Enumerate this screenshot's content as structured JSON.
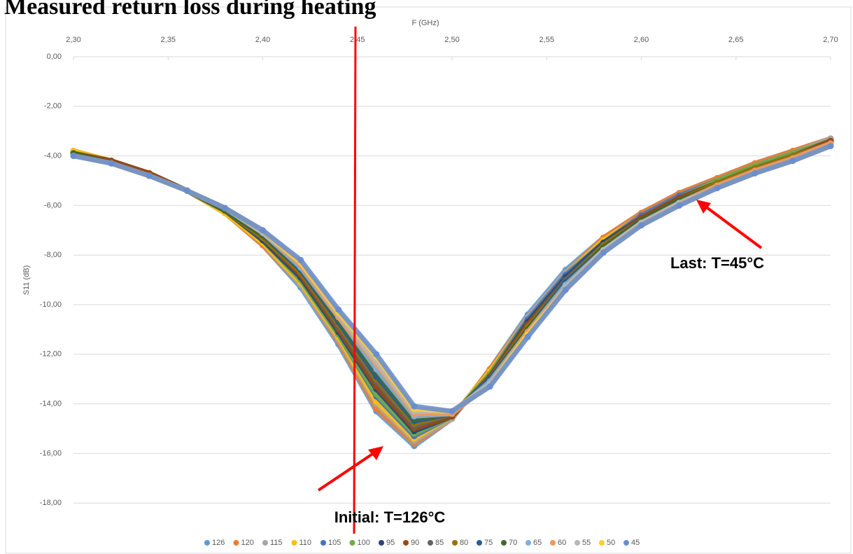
{
  "chart_data": {
    "type": "scatter",
    "title": "Measured return loss during heating",
    "x_label": "F (GHz)",
    "y_label": "S11 (dB)",
    "annotations": [
      "Initial: T=126°C",
      "Last: T=45°C"
    ],
    "xlim": [
      2.3,
      2.7
    ],
    "xticks": [
      {
        "value": 2.3,
        "label": "2,30"
      },
      {
        "value": 2.35,
        "label": "2,35"
      },
      {
        "value": 2.4,
        "label": "2,40"
      },
      {
        "value": 2.45,
        "label": "2,45"
      },
      {
        "value": 2.5,
        "label": "2,50"
      },
      {
        "value": 2.55,
        "label": "2,55"
      },
      {
        "value": 2.6,
        "label": "2,60"
      },
      {
        "value": 2.65,
        "label": "2,65"
      },
      {
        "value": 2.7,
        "label": "2,70"
      }
    ],
    "ylim": [
      -19.2,
      0
    ],
    "yticks": [
      {
        "value": 0,
        "label": "0,00"
      },
      {
        "value": -2,
        "label": "-2,00"
      },
      {
        "value": -4,
        "label": "-4,00"
      },
      {
        "value": -6,
        "label": "-6,00"
      },
      {
        "value": -8,
        "label": "-8,00"
      },
      {
        "value": -10,
        "label": "-10,00"
      },
      {
        "value": -12,
        "label": "-12,00"
      },
      {
        "value": -14,
        "label": "-14,00"
      },
      {
        "value": -16,
        "label": "-16,00"
      },
      {
        "value": -18,
        "label": "-18,00"
      }
    ],
    "grid": true,
    "legend": "bottom",
    "x": [
      2.3,
      2.32,
      2.34,
      2.36,
      2.38,
      2.4,
      2.42,
      2.44,
      2.46,
      2.48,
      2.5,
      2.52,
      2.54,
      2.56,
      2.58,
      2.6,
      2.62,
      2.64,
      2.66,
      2.68,
      2.7
    ],
    "series": [
      {
        "name": "126",
        "color": "#5B9BD5",
        "values": [
          -3.8,
          -4.2,
          -4.7,
          -5.4,
          -6.3,
          -7.6,
          -9.3,
          -11.6,
          -14.3,
          -15.7,
          -14.6,
          -12.6,
          -10.4,
          -8.6,
          -7.3,
          -6.3,
          -5.5,
          -4.9,
          -4.3,
          -3.8,
          -3.3
        ]
      },
      {
        "name": "120",
        "color": "#ED7D31",
        "values": [
          -3.8,
          -4.2,
          -4.7,
          -5.4,
          -6.3,
          -7.6,
          -9.2,
          -11.5,
          -14.2,
          -15.6,
          -14.6,
          -12.6,
          -10.5,
          -8.7,
          -7.3,
          -6.3,
          -5.5,
          -4.9,
          -4.3,
          -3.8,
          -3.3
        ]
      },
      {
        "name": "115",
        "color": "#A5A5A5",
        "values": [
          -3.8,
          -4.2,
          -4.7,
          -5.4,
          -6.3,
          -7.5,
          -9.2,
          -11.4,
          -14.0,
          -15.5,
          -14.6,
          -12.7,
          -10.5,
          -8.7,
          -7.4,
          -6.4,
          -5.6,
          -5.0,
          -4.4,
          -3.9,
          -3.3
        ]
      },
      {
        "name": "110",
        "color": "#FFC000",
        "values": [
          -3.8,
          -4.2,
          -4.7,
          -5.4,
          -6.3,
          -7.5,
          -9.1,
          -11.3,
          -13.9,
          -15.4,
          -14.5,
          -12.7,
          -10.6,
          -8.8,
          -7.4,
          -6.4,
          -5.6,
          -5.0,
          -4.4,
          -3.9,
          -3.4
        ]
      },
      {
        "name": "105",
        "color": "#4472C4",
        "values": [
          -3.9,
          -4.2,
          -4.7,
          -5.4,
          -6.2,
          -7.4,
          -9.0,
          -11.2,
          -13.7,
          -15.3,
          -14.5,
          -12.8,
          -10.6,
          -8.8,
          -7.5,
          -6.4,
          -5.6,
          -5.0,
          -4.4,
          -3.9,
          -3.4
        ]
      },
      {
        "name": "100",
        "color": "#70AD47",
        "values": [
          -3.9,
          -4.2,
          -4.7,
          -5.4,
          -6.2,
          -7.4,
          -9.0,
          -11.2,
          -13.6,
          -15.2,
          -14.5,
          -12.8,
          -10.7,
          -8.9,
          -7.5,
          -6.5,
          -5.7,
          -5.0,
          -4.4,
          -3.9,
          -3.4
        ]
      },
      {
        "name": "95",
        "color": "#264478",
        "values": [
          -3.9,
          -4.2,
          -4.7,
          -5.4,
          -6.2,
          -7.4,
          -8.9,
          -11.1,
          -13.4,
          -15.1,
          -14.5,
          -12.9,
          -10.7,
          -8.9,
          -7.5,
          -6.5,
          -5.7,
          -5.1,
          -4.5,
          -4.0,
          -3.4
        ]
      },
      {
        "name": "90",
        "color": "#9E480E",
        "values": [
          -3.9,
          -4.2,
          -4.7,
          -5.4,
          -6.2,
          -7.3,
          -8.8,
          -11.0,
          -13.3,
          -15.0,
          -14.5,
          -12.9,
          -10.8,
          -9.0,
          -7.6,
          -6.5,
          -5.7,
          -5.1,
          -4.5,
          -4.0,
          -3.4
        ]
      },
      {
        "name": "85",
        "color": "#636363",
        "values": [
          -3.9,
          -4.3,
          -4.8,
          -5.4,
          -6.2,
          -7.3,
          -8.7,
          -10.9,
          -13.1,
          -14.9,
          -14.4,
          -13.0,
          -10.9,
          -9.0,
          -7.6,
          -6.6,
          -5.8,
          -5.1,
          -4.5,
          -4.0,
          -3.5
        ]
      },
      {
        "name": "80",
        "color": "#997300",
        "values": [
          -3.9,
          -4.3,
          -4.8,
          -5.4,
          -6.2,
          -7.3,
          -8.7,
          -10.8,
          -13.0,
          -14.8,
          -14.4,
          -13.0,
          -10.9,
          -9.1,
          -7.6,
          -6.6,
          -5.8,
          -5.1,
          -4.5,
          -4.0,
          -3.5
        ]
      },
      {
        "name": "75",
        "color": "#255E91",
        "values": [
          -3.9,
          -4.3,
          -4.8,
          -5.4,
          -6.2,
          -7.2,
          -8.6,
          -10.7,
          -12.9,
          -14.7,
          -14.4,
          -13.0,
          -11.0,
          -9.1,
          -7.7,
          -6.6,
          -5.8,
          -5.2,
          -4.6,
          -4.1,
          -3.5
        ]
      },
      {
        "name": "70",
        "color": "#43682B",
        "values": [
          -3.9,
          -4.3,
          -4.8,
          -5.4,
          -6.2,
          -7.2,
          -8.5,
          -10.6,
          -12.7,
          -14.6,
          -14.4,
          -13.1,
          -11.0,
          -9.2,
          -7.7,
          -6.6,
          -5.8,
          -5.2,
          -4.6,
          -4.1,
          -3.5
        ]
      },
      {
        "name": "65",
        "color": "#7CAFDD",
        "values": [
          -4.0,
          -4.3,
          -4.8,
          -5.4,
          -6.1,
          -7.1,
          -8.5,
          -10.5,
          -12.6,
          -14.5,
          -14.4,
          -13.1,
          -11.1,
          -9.2,
          -7.8,
          -6.7,
          -5.9,
          -5.2,
          -4.6,
          -4.1,
          -3.5
        ]
      },
      {
        "name": "60",
        "color": "#F1975A",
        "values": [
          -4.0,
          -4.3,
          -4.8,
          -5.4,
          -6.1,
          -7.1,
          -8.4,
          -10.5,
          -12.4,
          -14.4,
          -14.4,
          -13.2,
          -11.1,
          -9.3,
          -7.8,
          -6.7,
          -5.9,
          -5.2,
          -4.6,
          -4.1,
          -3.5
        ]
      },
      {
        "name": "55",
        "color": "#B7B7B7",
        "values": [
          -4.0,
          -4.3,
          -4.8,
          -5.4,
          -6.1,
          -7.1,
          -8.3,
          -10.4,
          -12.3,
          -14.3,
          -14.3,
          -13.2,
          -11.2,
          -9.3,
          -7.8,
          -6.7,
          -5.9,
          -5.3,
          -4.7,
          -4.2,
          -3.6
        ]
      },
      {
        "name": "50",
        "color": "#FFCD33",
        "values": [
          -4.0,
          -4.3,
          -4.8,
          -5.4,
          -6.1,
          -7.0,
          -8.3,
          -10.3,
          -12.1,
          -14.2,
          -14.3,
          -13.3,
          -11.2,
          -9.4,
          -7.9,
          -6.8,
          -6.0,
          -5.3,
          -4.7,
          -4.2,
          -3.6
        ]
      },
      {
        "name": "45",
        "color": "#698ED0",
        "values": [
          -4.0,
          -4.3,
          -4.8,
          -5.4,
          -6.1,
          -7.0,
          -8.2,
          -10.2,
          -12.0,
          -14.1,
          -14.3,
          -13.3,
          -11.3,
          -9.4,
          -7.9,
          -6.8,
          -6.0,
          -5.3,
          -4.7,
          -4.2,
          -3.6
        ]
      }
    ]
  }
}
